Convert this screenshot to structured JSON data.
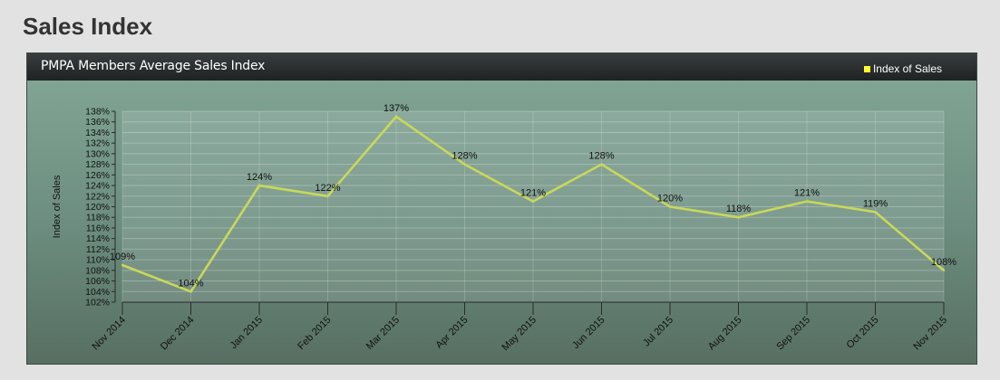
{
  "page": {
    "title": "Sales Index"
  },
  "chart_data": {
    "type": "line",
    "title": "PMPA Members Average Sales Index",
    "xlabel": "",
    "ylabel": "Index of Sales",
    "ylim": [
      102,
      138
    ],
    "y_tick_step": 2,
    "y_tick_suffix": "%",
    "grid": true,
    "legend_position": "top-right",
    "categories": [
      "Nov 2014",
      "Dec 2014",
      "Jan 2015",
      "Feb 2015",
      "Mar 2015",
      "Apr 2015",
      "May 2015",
      "Jun 2015",
      "Jul 2015",
      "Aug 2015",
      "Sep 2015",
      "Oct 2015",
      "Nov 2015"
    ],
    "series": [
      {
        "name": "Index of Sales",
        "values": [
          109,
          104,
          124,
          122,
          137,
          128,
          121,
          128,
          120,
          118,
          121,
          119,
          108
        ],
        "data_labels": [
          "109%",
          "104%",
          "124%",
          "122%",
          "137%",
          "128%",
          "121%",
          "128%",
          "120%",
          "118%",
          "121%",
          "119%",
          "108%"
        ],
        "color": "#c8d85a",
        "legend_color": "#ffff33"
      }
    ]
  }
}
